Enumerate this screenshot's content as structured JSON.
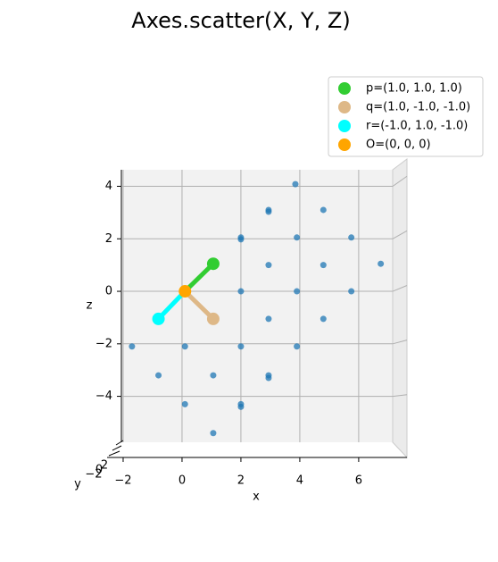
{
  "chart_data": {
    "type": "scatter3d",
    "title": "Axes.scatter(X, Y, Z)",
    "x_label": "x",
    "y_label": "y",
    "z_label": "z",
    "xlim": [
      -2.06,
      7.64
    ],
    "zlim": [
      -5.75,
      4.63
    ],
    "xticks": [
      {
        "value": -2,
        "label": "−2"
      },
      0,
      2,
      4,
      6
    ],
    "yticks": [
      {
        "value": -2,
        "label": "−2"
      },
      0,
      2
    ],
    "zticks": [
      {
        "value": -4,
        "label": "−4"
      },
      {
        "value": -2,
        "label": "−2"
      },
      0,
      2,
      4
    ],
    "grid": true,
    "legend": "upper right",
    "points": {
      "color": "#1f77b4",
      "x": [
        3.85,
        2.94,
        2.94,
        4.8,
        2.0,
        2.0,
        3.9,
        5.75,
        2.94,
        4.8,
        6.75,
        1.06,
        0.1,
        2.0,
        3.9,
        5.75,
        -0.8,
        1.06,
        2.94,
        4.8,
        -1.7,
        0.1,
        2.0,
        3.9,
        -0.8,
        1.06,
        2.94,
        2.94,
        0.1,
        2.0,
        2.0,
        1.06
      ],
      "z": [
        4.08,
        3.1,
        3.03,
        3.1,
        2.05,
        1.98,
        2.05,
        2.05,
        1.0,
        1.0,
        1.05,
        1.0,
        0,
        0,
        0,
        0,
        -1.05,
        -1.05,
        -1.05,
        -1.05,
        -2.1,
        -2.1,
        -2.1,
        -2.1,
        -3.2,
        -3.2,
        -3.2,
        -3.3,
        -4.3,
        -4.3,
        -4.4,
        -5.4
      ]
    },
    "series": [
      {
        "name": "p=(1.0, 1.0, 1.0)",
        "color": "#32cd32",
        "x": [
          1.06
        ],
        "z": [
          1.05
        ]
      },
      {
        "name": "q=(1.0, -1.0, -1.0)",
        "color": "#deb887",
        "x": [
          1.06
        ],
        "z": [
          -1.05
        ]
      },
      {
        "name": "r=(-1.0, 1.0, -1.0)",
        "color": "#00ffff",
        "x": [
          -0.8
        ],
        "z": [
          -1.05
        ]
      },
      {
        "name": "O=(0, 0, 0)",
        "color": "#ffa500",
        "x": [
          0.1
        ],
        "z": [
          0
        ]
      }
    ]
  }
}
